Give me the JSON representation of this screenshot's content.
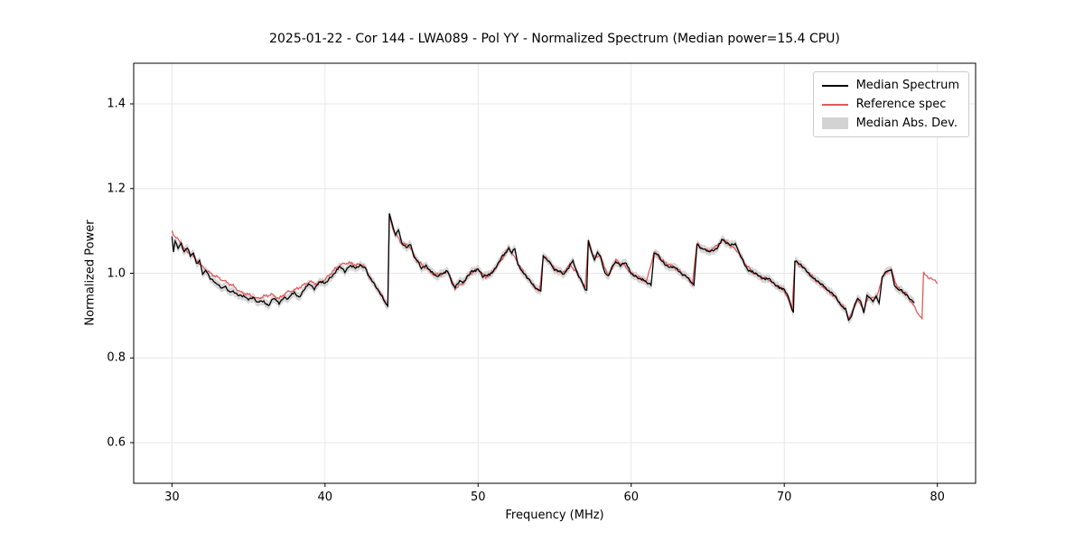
{
  "figure": {
    "title": "2025-01-22 - Cor 144 - LWA089 - Pol YY - Normalized Spectrum (Median power=15.4 CPU)",
    "xlabel": "Frequency (MHz)",
    "ylabel": "Normalized Power"
  },
  "legend": {
    "items": [
      {
        "label": "Median Spectrum",
        "type": "line",
        "color": "#000000"
      },
      {
        "label": "Reference spec",
        "type": "line",
        "color": "#e05a5a"
      },
      {
        "label": "Median Abs. Dev.",
        "type": "patch",
        "color": "#bcbcbc"
      }
    ]
  },
  "chart_data": {
    "type": "line",
    "title": "2025-01-22 - Cor 144 - LWA089 - Pol YY - Normalized Spectrum (Median power=15.4 CPU)",
    "xlabel": "Frequency (MHz)",
    "ylabel": "Normalized Power",
    "xlim": [
      27.5,
      82.5
    ],
    "ylim": [
      0.504,
      1.496
    ],
    "xticks": [
      30,
      40,
      50,
      60,
      70,
      80
    ],
    "yticks": [
      0.6,
      0.8,
      1.0,
      1.2,
      1.4
    ],
    "grid": true,
    "grid_color": "#e7e7e7",
    "legend_position": "upper right",
    "noise_amplitude": 0.004,
    "series": [
      {
        "name": "Median Spectrum",
        "color": "#000000",
        "points": [
          [
            30,
            1.09
          ],
          [
            30.1,
            1.05
          ],
          [
            30.2,
            1.08
          ],
          [
            30.4,
            1.06
          ],
          [
            30.6,
            1.07
          ],
          [
            30.8,
            1.05
          ],
          [
            31,
            1.06
          ],
          [
            31.2,
            1.04
          ],
          [
            31.4,
            1.045
          ],
          [
            31.6,
            1.02
          ],
          [
            31.8,
            1.03
          ],
          [
            32,
            1.0
          ],
          [
            32.2,
            1.01
          ],
          [
            32.5,
            0.99
          ],
          [
            32.8,
            0.98
          ],
          [
            33,
            0.975
          ],
          [
            33.3,
            0.965
          ],
          [
            33.5,
            0.97
          ],
          [
            33.8,
            0.955
          ],
          [
            34,
            0.96
          ],
          [
            34.3,
            0.95
          ],
          [
            34.6,
            0.945
          ],
          [
            35,
            0.94
          ],
          [
            35.3,
            0.945
          ],
          [
            35.6,
            0.93
          ],
          [
            36,
            0.935
          ],
          [
            36.3,
            0.925
          ],
          [
            36.6,
            0.94
          ],
          [
            37,
            0.93
          ],
          [
            37.3,
            0.945
          ],
          [
            37.6,
            0.94
          ],
          [
            38,
            0.955
          ],
          [
            38.3,
            0.945
          ],
          [
            38.6,
            0.96
          ],
          [
            39,
            0.975
          ],
          [
            39.3,
            0.965
          ],
          [
            39.6,
            0.98
          ],
          [
            40,
            0.975
          ],
          [
            40.3,
            0.99
          ],
          [
            40.6,
            1.0
          ],
          [
            41,
            1.015
          ],
          [
            41.3,
            1.005
          ],
          [
            41.6,
            1.02
          ],
          [
            42,
            1.01
          ],
          [
            42.3,
            1.02
          ],
          [
            42.6,
            1.015
          ],
          [
            42.8,
            0.995
          ],
          [
            43,
            0.985
          ],
          [
            43.3,
            0.97
          ],
          [
            43.6,
            0.955
          ],
          [
            43.9,
            0.935
          ],
          [
            44.1,
            0.925
          ],
          [
            44.2,
            1.14
          ],
          [
            44.4,
            1.115
          ],
          [
            44.6,
            1.09
          ],
          [
            44.8,
            1.1
          ],
          [
            45,
            1.07
          ],
          [
            45.3,
            1.06
          ],
          [
            45.6,
            1.07
          ],
          [
            45.8,
            1.04
          ],
          [
            46,
            1.03
          ],
          [
            46.3,
            1.01
          ],
          [
            46.6,
            1.02
          ],
          [
            47,
            1.0
          ],
          [
            47.3,
            0.99
          ],
          [
            47.6,
            1.0
          ],
          [
            48,
            1.005
          ],
          [
            48.3,
            0.975
          ],
          [
            48.5,
            0.965
          ],
          [
            48.8,
            0.98
          ],
          [
            49,
            0.975
          ],
          [
            49.3,
            0.99
          ],
          [
            49.6,
            1.005
          ],
          [
            50,
            1.01
          ],
          [
            50.3,
            0.99
          ],
          [
            50.6,
            0.995
          ],
          [
            51,
            1.005
          ],
          [
            51.3,
            1.02
          ],
          [
            51.6,
            1.04
          ],
          [
            52,
            1.06
          ],
          [
            52.2,
            1.05
          ],
          [
            52.4,
            1.06
          ],
          [
            52.6,
            1.02
          ],
          [
            53,
            1.0
          ],
          [
            53.3,
            0.985
          ],
          [
            53.6,
            0.97
          ],
          [
            53.9,
            0.96
          ],
          [
            54.1,
            0.955
          ],
          [
            54.25,
            1.04
          ],
          [
            54.5,
            1.035
          ],
          [
            54.8,
            1.02
          ],
          [
            55,
            1.01
          ],
          [
            55.3,
            1.005
          ],
          [
            55.6,
            0.995
          ],
          [
            56,
            1.02
          ],
          [
            56.2,
            1.03
          ],
          [
            56.5,
            1.0
          ],
          [
            56.8,
            0.98
          ],
          [
            57,
            0.965
          ],
          [
            57.1,
            0.96
          ],
          [
            57.2,
            1.08
          ],
          [
            57.4,
            1.05
          ],
          [
            57.6,
            1.03
          ],
          [
            57.8,
            1.05
          ],
          [
            58,
            1.04
          ],
          [
            58.3,
            1.0
          ],
          [
            58.5,
            0.995
          ],
          [
            58.8,
            1.02
          ],
          [
            59,
            1.03
          ],
          [
            59.3,
            1.02
          ],
          [
            59.6,
            1.025
          ],
          [
            60,
            1.0
          ],
          [
            60.3,
            0.995
          ],
          [
            60.6,
            0.985
          ],
          [
            61,
            0.98
          ],
          [
            61.3,
            0.975
          ],
          [
            61.5,
            1.05
          ],
          [
            61.7,
            1.045
          ],
          [
            62,
            1.03
          ],
          [
            62.3,
            1.02
          ],
          [
            62.6,
            1.015
          ],
          [
            63,
            1.01
          ],
          [
            63.3,
            1.0
          ],
          [
            63.6,
            0.995
          ],
          [
            63.9,
            0.98
          ],
          [
            64.1,
            0.975
          ],
          [
            64.3,
            1.07
          ],
          [
            64.6,
            1.06
          ],
          [
            65,
            1.05
          ],
          [
            65.3,
            1.055
          ],
          [
            65.6,
            1.06
          ],
          [
            66,
            1.08
          ],
          [
            66.2,
            1.07
          ],
          [
            66.5,
            1.065
          ],
          [
            66.8,
            1.07
          ],
          [
            67,
            1.05
          ],
          [
            67.3,
            1.03
          ],
          [
            67.6,
            1.01
          ],
          [
            68,
            1.0
          ],
          [
            68.3,
            0.995
          ],
          [
            68.6,
            0.99
          ],
          [
            69,
            0.985
          ],
          [
            69.3,
            0.975
          ],
          [
            69.6,
            0.97
          ],
          [
            70,
            0.96
          ],
          [
            70.3,
            0.94
          ],
          [
            70.5,
            0.915
          ],
          [
            70.6,
            0.91
          ],
          [
            70.7,
            1.03
          ],
          [
            71,
            1.02
          ],
          [
            71.3,
            1.01
          ],
          [
            71.6,
            1.0
          ],
          [
            72,
            0.985
          ],
          [
            72.3,
            0.975
          ],
          [
            72.6,
            0.97
          ],
          [
            73,
            0.955
          ],
          [
            73.3,
            0.945
          ],
          [
            73.6,
            0.93
          ],
          [
            74,
            0.915
          ],
          [
            74.2,
            0.89
          ],
          [
            74.4,
            0.9
          ],
          [
            74.6,
            0.925
          ],
          [
            74.8,
            0.94
          ],
          [
            75,
            0.935
          ],
          [
            75.2,
            0.91
          ],
          [
            75.4,
            0.95
          ],
          [
            75.6,
            0.94
          ],
          [
            75.8,
            0.93
          ],
          [
            76,
            0.945
          ],
          [
            76.2,
            0.93
          ],
          [
            76.4,
            0.99
          ],
          [
            76.6,
            1.0
          ],
          [
            76.8,
            1.005
          ],
          [
            77,
            1.01
          ],
          [
            77.2,
            0.975
          ],
          [
            77.4,
            0.965
          ],
          [
            77.6,
            0.96
          ],
          [
            78,
            0.95
          ],
          [
            78.3,
            0.935
          ],
          [
            78.5,
            0.93
          ]
        ]
      },
      {
        "name": "Reference spec",
        "color": "#e05a5a",
        "points": [
          [
            30,
            1.1
          ],
          [
            30.2,
            1.085
          ],
          [
            30.5,
            1.075
          ],
          [
            30.8,
            1.06
          ],
          [
            31.1,
            1.05
          ],
          [
            31.5,
            1.035
          ],
          [
            32,
            1.015
          ],
          [
            32.5,
            1.0
          ],
          [
            33,
            0.99
          ],
          [
            33.5,
            0.98
          ],
          [
            34,
            0.97
          ],
          [
            34.5,
            0.955
          ],
          [
            35,
            0.95
          ],
          [
            35.5,
            0.94
          ],
          [
            36,
            0.945
          ],
          [
            36.5,
            0.95
          ],
          [
            37,
            0.94
          ],
          [
            37.5,
            0.955
          ],
          [
            38,
            0.96
          ],
          [
            38.5,
            0.97
          ],
          [
            39,
            0.98
          ],
          [
            39.5,
            0.975
          ],
          [
            40,
            0.985
          ],
          [
            40.5,
            1.005
          ],
          [
            41,
            1.02
          ],
          [
            41.5,
            1.025
          ],
          [
            42,
            1.02
          ],
          [
            42.5,
            1.02
          ],
          [
            43,
            0.985
          ],
          [
            43.5,
            0.96
          ],
          [
            44,
            0.93
          ],
          [
            44.1,
            0.925
          ],
          [
            44.2,
            1.135
          ],
          [
            44.5,
            1.1
          ],
          [
            45,
            1.07
          ],
          [
            45.5,
            1.065
          ],
          [
            46,
            1.03
          ],
          [
            46.5,
            1.015
          ],
          [
            47,
            1.0
          ],
          [
            47.5,
            0.995
          ],
          [
            48,
            1.005
          ],
          [
            48.5,
            0.965
          ],
          [
            49,
            0.975
          ],
          [
            49.5,
            1.0
          ],
          [
            50,
            1.01
          ],
          [
            50.5,
            0.99
          ],
          [
            51,
            1.005
          ],
          [
            51.5,
            1.03
          ],
          [
            52,
            1.06
          ],
          [
            52.5,
            1.03
          ],
          [
            53,
            1.0
          ],
          [
            53.5,
            0.975
          ],
          [
            54,
            0.955
          ],
          [
            54.25,
            1.04
          ],
          [
            54.6,
            1.03
          ],
          [
            55,
            1.01
          ],
          [
            55.5,
            1.0
          ],
          [
            56,
            1.02
          ],
          [
            56.5,
            1.0
          ],
          [
            57,
            0.965
          ],
          [
            57.2,
            1.08
          ],
          [
            57.5,
            1.04
          ],
          [
            58,
            1.04
          ],
          [
            58.5,
            0.995
          ],
          [
            59,
            1.03
          ],
          [
            59.5,
            1.02
          ],
          [
            60,
            1.0
          ],
          [
            60.5,
            0.99
          ],
          [
            61,
            0.98
          ],
          [
            61.5,
            1.05
          ],
          [
            62,
            1.03
          ],
          [
            62.5,
            1.02
          ],
          [
            63,
            1.01
          ],
          [
            63.5,
            0.995
          ],
          [
            64,
            0.975
          ],
          [
            64.3,
            1.07
          ],
          [
            64.8,
            1.055
          ],
          [
            65.3,
            1.055
          ],
          [
            66,
            1.08
          ],
          [
            66.5,
            1.065
          ],
          [
            67,
            1.05
          ],
          [
            67.5,
            1.02
          ],
          [
            68,
            1.0
          ],
          [
            68.5,
            0.99
          ],
          [
            69,
            0.985
          ],
          [
            69.5,
            0.97
          ],
          [
            70,
            0.96
          ],
          [
            70.5,
            0.915
          ],
          [
            70.7,
            1.03
          ],
          [
            71,
            1.02
          ],
          [
            71.5,
            1.005
          ],
          [
            72,
            0.985
          ],
          [
            72.5,
            0.97
          ],
          [
            73,
            0.955
          ],
          [
            73.5,
            0.935
          ],
          [
            74,
            0.915
          ],
          [
            74.2,
            0.89
          ],
          [
            74.5,
            0.915
          ],
          [
            74.8,
            0.94
          ],
          [
            75.2,
            0.91
          ],
          [
            75.5,
            0.945
          ],
          [
            76,
            0.94
          ],
          [
            76.4,
            0.99
          ],
          [
            76.8,
            1.005
          ],
          [
            77,
            1.01
          ],
          [
            77.4,
            0.965
          ],
          [
            78,
            0.95
          ],
          [
            78.5,
            0.92
          ],
          [
            78.8,
            0.9
          ],
          [
            79,
            0.89
          ],
          [
            79.1,
            1.005
          ],
          [
            79.4,
            0.99
          ],
          [
            79.7,
            0.985
          ],
          [
            80,
            0.975
          ]
        ]
      },
      {
        "name": "Median Abs. Dev.",
        "type": "band",
        "color": "#bcbcbc",
        "halfwidth": 0.01,
        "around": "Median Spectrum"
      }
    ]
  }
}
